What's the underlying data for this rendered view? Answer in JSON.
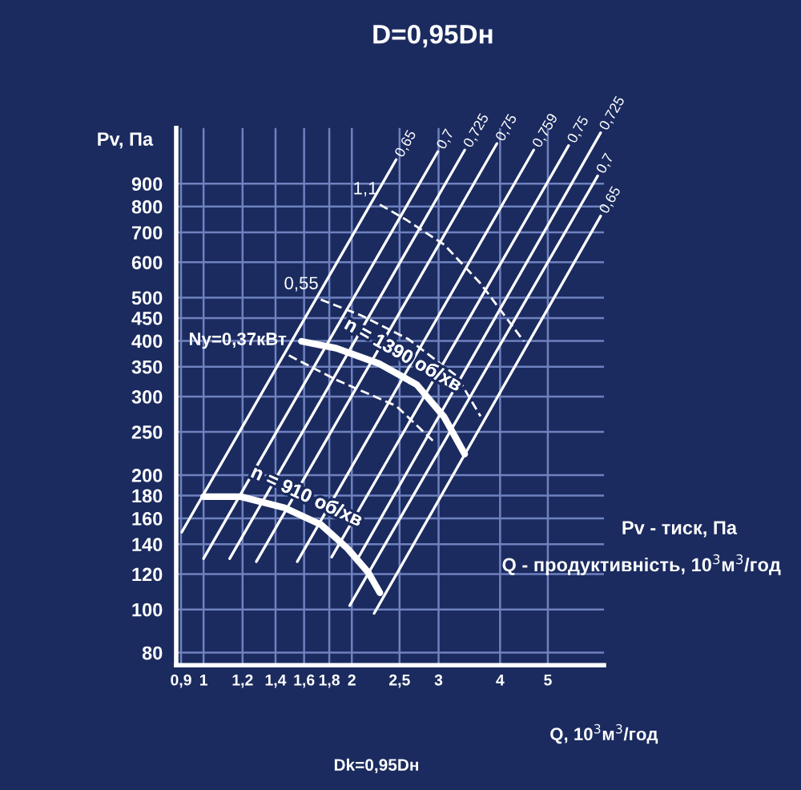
{
  "chart_data": {
    "type": "line",
    "title": "D=0,95Dн",
    "xlabel": "Q, 10$^{3}$м$^{3}$/год",
    "ylabel": "Pv, Па",
    "log": "xy",
    "grid": true,
    "xlim": [
      0.88,
      6.5
    ],
    "ylim": [
      75,
      1200
    ],
    "xticks": [
      {
        "value": 0.9,
        "label": "0,9"
      },
      1,
      {
        "value": 1.2,
        "label": "1,2"
      },
      {
        "value": 1.4,
        "label": "1,4"
      },
      {
        "value": 1.6,
        "label": "1,6"
      },
      {
        "value": 1.8,
        "label": "1,8"
      },
      2,
      {
        "value": 2.5,
        "label": "2,5"
      },
      3,
      4,
      5
    ],
    "yticks": [
      80,
      100,
      120,
      140,
      160,
      180,
      200,
      250,
      300,
      350,
      400,
      450,
      500,
      600,
      700,
      800,
      900
    ],
    "series": [
      {
        "name": "0,65",
        "color": "#ffffff",
        "line_style": "solid",
        "x": [
          0.903,
          2.46
        ],
        "values": [
          149,
          1019
        ]
      },
      {
        "name": "0,7",
        "color": "#ffffff",
        "line_style": "solid",
        "x": [
          1.0,
          2.99
        ],
        "values": [
          130,
          1062
        ]
      },
      {
        "name": "0,725",
        "color": "#ffffff",
        "line_style": "solid",
        "x": [
          1.13,
          3.39
        ],
        "values": [
          130,
          1071
        ]
      },
      {
        "name": "0,75",
        "color": "#ffffff",
        "line_style": "solid",
        "x": [
          1.28,
          3.94
        ],
        "values": [
          128,
          1107
        ]
      },
      {
        "name": "0,759",
        "color": "#ffffff",
        "line_style": "solid",
        "x": [
          1.55,
          4.68
        ],
        "values": [
          128,
          1071
        ]
      },
      {
        "name": "0,75",
        "color": "#ffffff",
        "line_style": "solid",
        "x": [
          1.82,
          5.51
        ],
        "values": [
          131,
          1096
        ]
      },
      {
        "name": "0,725",
        "color": "#ffffff",
        "line_style": "solid",
        "x": [
          2.04,
          6.4
        ],
        "values": [
          128,
          1171
        ]
      },
      {
        "name": "0,7",
        "color": "#ffffff",
        "line_style": "solid",
        "x": [
          1.98,
          6.31
        ],
        "values": [
          102,
          937
        ]
      },
      {
        "name": "0,65",
        "color": "#ffffff",
        "line_style": "solid",
        "x": [
          2.22,
          6.4
        ],
        "values": [
          98,
          762
        ]
      },
      {
        "name": "Ny=0,37кВт",
        "color": "#ffffff",
        "line_style": "dashed",
        "x": [
          1.49,
          1.86,
          2.46,
          2.92
        ],
        "values": [
          371,
          327,
          286,
          239
        ]
      },
      {
        "name": "0,55",
        "color": "#ffffff",
        "line_style": "dashed",
        "x": [
          1.73,
          2.09,
          2.61,
          3.27,
          3.65
        ],
        "values": [
          495,
          456,
          403,
          333,
          271
        ]
      },
      {
        "name": "1,1",
        "color": "#ffffff",
        "line_style": "dashed",
        "x": [
          2.28,
          2.57,
          3.08,
          3.65,
          4.47
        ],
        "values": [
          808,
          749,
          657,
          538,
          399
        ]
      },
      {
        "name": "n = 1390 об/хв",
        "color": "#ffffff",
        "line_style": "solid",
        "x": [
          1.58,
          1.86,
          2.28,
          2.71,
          3.08,
          3.39
        ],
        "values": [
          399,
          385,
          355,
          319,
          270,
          223
        ]
      },
      {
        "name": "n = 910 об/хв",
        "color": "#ffffff",
        "line_style": "solid",
        "x": [
          1.0,
          1.19,
          1.46,
          1.73,
          1.96,
          2.16,
          2.28
        ],
        "values": [
          179,
          179,
          169,
          155,
          137,
          121,
          109
        ]
      }
    ],
    "annotations": [
      "Pv - тиск, Па",
      "Q - продуктивність, 10$^{3}$м$^{3}$/год",
      "Dk=0,95Dн"
    ]
  }
}
